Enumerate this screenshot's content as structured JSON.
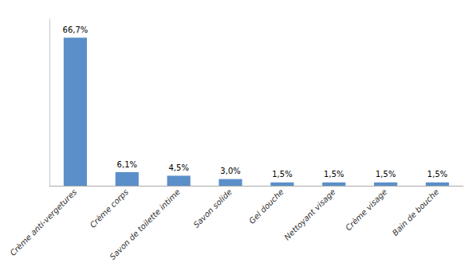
{
  "chart_data": {
    "type": "bar",
    "categories": [
      "Crème anti-vergetures",
      "Crème corps",
      "Savon de toilette intime",
      "Savon solide",
      "Gel douche",
      "Nettoyant visage",
      "Crème visage",
      "Bain de bouche"
    ],
    "values": [
      66.7,
      6.1,
      4.5,
      3.0,
      1.5,
      1.5,
      1.5,
      1.5
    ],
    "value_labels": [
      "66,7%",
      "6,1%",
      "4,5%",
      "3,0%",
      "1,5%",
      "1,5%",
      "1,5%",
      "1,5%"
    ],
    "color": "#5B8FC9",
    "ylim": [
      0,
      75
    ],
    "yticks": [],
    "grid": false,
    "data_labels": true,
    "tick_labels": "x"
  }
}
